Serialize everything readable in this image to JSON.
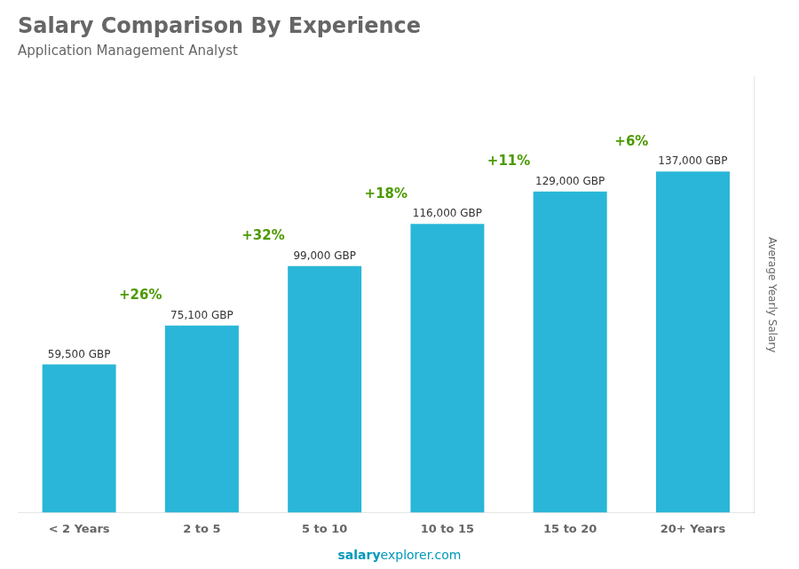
{
  "chart_data": {
    "type": "bar",
    "title": "Salary Comparison By Experience",
    "subtitle": "Application Management Analyst",
    "categories": [
      "< 2 Years",
      "2 to 5",
      "5 to 10",
      "10 to 15",
      "15 to 20",
      "20+ Years"
    ],
    "values": [
      59500,
      75100,
      99000,
      116000,
      129000,
      137000
    ],
    "value_labels": [
      "59,500 GBP",
      "75,100 GBP",
      "99,000 GBP",
      "116,000 GBP",
      "129,000 GBP",
      "137,000 GBP"
    ],
    "data_labels": true,
    "annotations": [
      "+26%",
      "+32%",
      "+18%",
      "+11%",
      "+6%"
    ],
    "color": "#29b6d8",
    "y_label": "Average Yearly Salary",
    "watermark": [
      "salary",
      "explorer.com"
    ],
    "ylim": [
      0,
      175000
    ],
    "tick_labels": "x",
    "grid": false
  }
}
